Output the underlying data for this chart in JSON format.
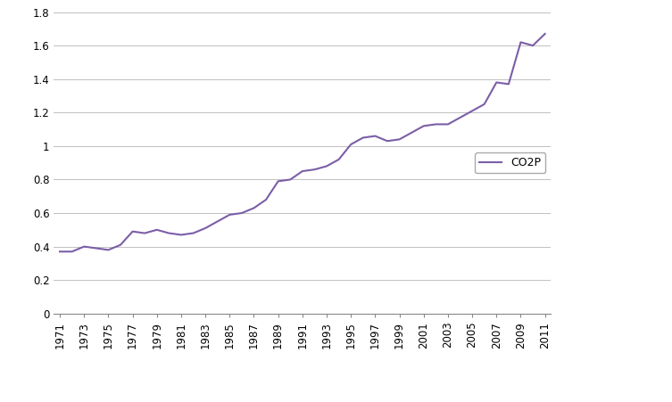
{
  "years": [
    1971,
    1972,
    1973,
    1974,
    1975,
    1976,
    1977,
    1978,
    1979,
    1980,
    1981,
    1982,
    1983,
    1984,
    1985,
    1986,
    1987,
    1988,
    1989,
    1990,
    1991,
    1992,
    1993,
    1994,
    1995,
    1996,
    1997,
    1998,
    1999,
    2000,
    2001,
    2002,
    2003,
    2004,
    2005,
    2006,
    2007,
    2008,
    2009,
    2010,
    2011
  ],
  "values": [
    0.37,
    0.37,
    0.4,
    0.39,
    0.38,
    0.41,
    0.49,
    0.48,
    0.5,
    0.48,
    0.47,
    0.48,
    0.51,
    0.55,
    0.59,
    0.6,
    0.63,
    0.68,
    0.79,
    0.8,
    0.85,
    0.86,
    0.88,
    0.92,
    1.01,
    1.05,
    1.06,
    1.03,
    1.04,
    1.08,
    1.12,
    1.13,
    1.13,
    1.17,
    1.21,
    1.25,
    1.38,
    1.37,
    1.62,
    1.6,
    1.67
  ],
  "line_color": "#7B5EA7",
  "line_width": 1.5,
  "ylim": [
    0,
    1.8
  ],
  "ytick_values": [
    0,
    0.2,
    0.4,
    0.6,
    0.8,
    1.0,
    1.2,
    1.4,
    1.6,
    1.8
  ],
  "ytick_labels": [
    "0",
    "0.2",
    "0.4",
    "0.6",
    "0.8",
    "1",
    "1.2",
    "1.4",
    "1.6",
    "1.8"
  ],
  "xtick_years": [
    1971,
    1973,
    1975,
    1977,
    1979,
    1981,
    1983,
    1985,
    1987,
    1989,
    1991,
    1993,
    1995,
    1997,
    1999,
    2001,
    2003,
    2005,
    2007,
    2009,
    2011
  ],
  "legend_label": "CO2P",
  "grid_color": "#C0C0C0",
  "background_color": "#FFFFFF",
  "tick_fontsize": 8.5,
  "legend_fontsize": 9
}
